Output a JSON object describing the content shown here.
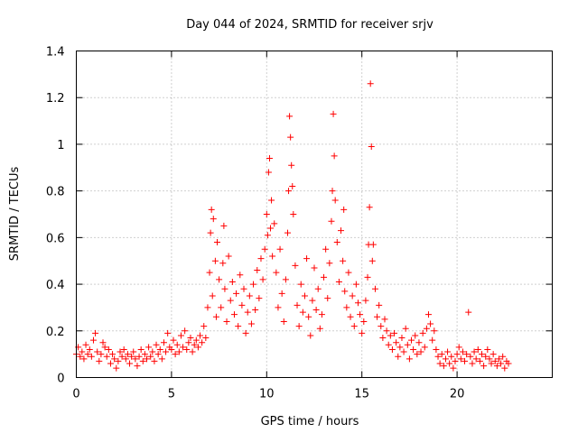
{
  "chart_data": {
    "type": "scatter",
    "title": "Day 044 of 2024, SRMTID for receiver srjv",
    "xlabel": "GPS time / hours",
    "ylabel": "SRMTID / TECUs",
    "xlim": [
      0,
      25
    ],
    "ylim": [
      0,
      1.4
    ],
    "xticks": [
      0,
      5,
      10,
      15,
      20
    ],
    "xtick_labels": [
      "0",
      "5",
      "10",
      "15",
      "20"
    ],
    "yticks": [
      0,
      0.2,
      0.4,
      0.6,
      0.8,
      1.0,
      1.2,
      1.4
    ],
    "ytick_labels": [
      "0",
      "0.2",
      "0.4",
      "0.6",
      "0.8",
      "1",
      "1.2",
      "1.4"
    ],
    "grid": true,
    "marker": "+",
    "color": "#ff0000",
    "series": [
      {
        "name": "SRMTID",
        "points": [
          [
            0.0,
            0.1
          ],
          [
            0.1,
            0.13
          ],
          [
            0.2,
            0.09
          ],
          [
            0.3,
            0.11
          ],
          [
            0.4,
            0.08
          ],
          [
            0.5,
            0.14
          ],
          [
            0.6,
            0.1
          ],
          [
            0.7,
            0.12
          ],
          [
            0.8,
            0.09
          ],
          [
            0.9,
            0.16
          ],
          [
            1.0,
            0.19
          ],
          [
            1.1,
            0.11
          ],
          [
            1.2,
            0.07
          ],
          [
            1.3,
            0.1
          ],
          [
            1.4,
            0.15
          ],
          [
            1.5,
            0.13
          ],
          [
            1.6,
            0.09
          ],
          [
            1.7,
            0.12
          ],
          [
            1.8,
            0.06
          ],
          [
            1.9,
            0.1
          ],
          [
            2.0,
            0.08
          ],
          [
            2.1,
            0.04
          ],
          [
            2.2,
            0.07
          ],
          [
            2.3,
            0.11
          ],
          [
            2.4,
            0.09
          ],
          [
            2.5,
            0.12
          ],
          [
            2.6,
            0.08
          ],
          [
            2.7,
            0.1
          ],
          [
            2.8,
            0.06
          ],
          [
            2.9,
            0.09
          ],
          [
            3.0,
            0.11
          ],
          [
            3.1,
            0.08
          ],
          [
            3.2,
            0.05
          ],
          [
            3.3,
            0.09
          ],
          [
            3.4,
            0.12
          ],
          [
            3.5,
            0.07
          ],
          [
            3.6,
            0.1
          ],
          [
            3.7,
            0.08
          ],
          [
            3.8,
            0.13
          ],
          [
            3.9,
            0.09
          ],
          [
            4.0,
            0.11
          ],
          [
            4.1,
            0.07
          ],
          [
            4.2,
            0.14
          ],
          [
            4.3,
            0.1
          ],
          [
            4.4,
            0.12
          ],
          [
            4.5,
            0.08
          ],
          [
            4.6,
            0.15
          ],
          [
            4.7,
            0.11
          ],
          [
            4.8,
            0.19
          ],
          [
            4.9,
            0.13
          ],
          [
            5.0,
            0.12
          ],
          [
            5.1,
            0.16
          ],
          [
            5.2,
            0.1
          ],
          [
            5.3,
            0.14
          ],
          [
            5.4,
            0.11
          ],
          [
            5.5,
            0.18
          ],
          [
            5.6,
            0.13
          ],
          [
            5.7,
            0.2
          ],
          [
            5.8,
            0.12
          ],
          [
            5.9,
            0.15
          ],
          [
            6.0,
            0.17
          ],
          [
            6.1,
            0.11
          ],
          [
            6.2,
            0.14
          ],
          [
            6.3,
            0.16
          ],
          [
            6.4,
            0.13
          ],
          [
            6.5,
            0.18
          ],
          [
            6.6,
            0.15
          ],
          [
            6.7,
            0.22
          ],
          [
            6.8,
            0.17
          ],
          [
            6.9,
            0.3
          ],
          [
            7.0,
            0.45
          ],
          [
            7.05,
            0.62
          ],
          [
            7.1,
            0.72
          ],
          [
            7.15,
            0.35
          ],
          [
            7.2,
            0.68
          ],
          [
            7.3,
            0.5
          ],
          [
            7.35,
            0.26
          ],
          [
            7.4,
            0.58
          ],
          [
            7.5,
            0.42
          ],
          [
            7.6,
            0.3
          ],
          [
            7.7,
            0.49
          ],
          [
            7.75,
            0.65
          ],
          [
            7.8,
            0.38
          ],
          [
            7.9,
            0.24
          ],
          [
            8.0,
            0.52
          ],
          [
            8.1,
            0.33
          ],
          [
            8.2,
            0.41
          ],
          [
            8.3,
            0.27
          ],
          [
            8.4,
            0.36
          ],
          [
            8.5,
            0.22
          ],
          [
            8.6,
            0.44
          ],
          [
            8.7,
            0.31
          ],
          [
            8.8,
            0.38
          ],
          [
            8.9,
            0.19
          ],
          [
            9.0,
            0.28
          ],
          [
            9.1,
            0.35
          ],
          [
            9.2,
            0.23
          ],
          [
            9.3,
            0.4
          ],
          [
            9.4,
            0.29
          ],
          [
            9.5,
            0.46
          ],
          [
            9.6,
            0.34
          ],
          [
            9.7,
            0.51
          ],
          [
            9.8,
            0.42
          ],
          [
            9.9,
            0.55
          ],
          [
            10.0,
            0.7
          ],
          [
            10.05,
            0.61
          ],
          [
            10.1,
            0.88
          ],
          [
            10.15,
            0.94
          ],
          [
            10.2,
            0.64
          ],
          [
            10.25,
            0.76
          ],
          [
            10.3,
            0.52
          ],
          [
            10.4,
            0.66
          ],
          [
            10.5,
            0.45
          ],
          [
            10.6,
            0.3
          ],
          [
            10.7,
            0.55
          ],
          [
            10.8,
            0.36
          ],
          [
            10.9,
            0.24
          ],
          [
            11.0,
            0.42
          ],
          [
            11.1,
            0.62
          ],
          [
            11.15,
            0.8
          ],
          [
            11.2,
            1.12
          ],
          [
            11.25,
            1.03
          ],
          [
            11.3,
            0.91
          ],
          [
            11.35,
            0.82
          ],
          [
            11.4,
            0.7
          ],
          [
            11.5,
            0.48
          ],
          [
            11.6,
            0.31
          ],
          [
            11.7,
            0.22
          ],
          [
            11.8,
            0.4
          ],
          [
            11.9,
            0.28
          ],
          [
            12.0,
            0.35
          ],
          [
            12.1,
            0.51
          ],
          [
            12.2,
            0.26
          ],
          [
            12.3,
            0.18
          ],
          [
            12.4,
            0.33
          ],
          [
            12.5,
            0.47
          ],
          [
            12.6,
            0.29
          ],
          [
            12.7,
            0.38
          ],
          [
            12.8,
            0.21
          ],
          [
            12.9,
            0.27
          ],
          [
            13.0,
            0.43
          ],
          [
            13.1,
            0.55
          ],
          [
            13.2,
            0.34
          ],
          [
            13.3,
            0.49
          ],
          [
            13.4,
            0.67
          ],
          [
            13.45,
            0.8
          ],
          [
            13.5,
            1.13
          ],
          [
            13.55,
            0.95
          ],
          [
            13.6,
            0.76
          ],
          [
            13.7,
            0.58
          ],
          [
            13.8,
            0.41
          ],
          [
            13.9,
            0.63
          ],
          [
            14.0,
            0.5
          ],
          [
            14.05,
            0.72
          ],
          [
            14.1,
            0.37
          ],
          [
            14.2,
            0.3
          ],
          [
            14.3,
            0.45
          ],
          [
            14.4,
            0.26
          ],
          [
            14.5,
            0.35
          ],
          [
            14.6,
            0.22
          ],
          [
            14.7,
            0.4
          ],
          [
            14.8,
            0.32
          ],
          [
            14.9,
            0.27
          ],
          [
            15.0,
            0.19
          ],
          [
            15.1,
            0.24
          ],
          [
            15.2,
            0.33
          ],
          [
            15.3,
            0.43
          ],
          [
            15.35,
            0.57
          ],
          [
            15.4,
            0.73
          ],
          [
            15.45,
            1.26
          ],
          [
            15.5,
            0.99
          ],
          [
            15.55,
            0.5
          ],
          [
            15.6,
            0.57
          ],
          [
            15.7,
            0.38
          ],
          [
            15.8,
            0.26
          ],
          [
            15.9,
            0.31
          ],
          [
            16.0,
            0.22
          ],
          [
            16.1,
            0.17
          ],
          [
            16.2,
            0.25
          ],
          [
            16.3,
            0.2
          ],
          [
            16.4,
            0.14
          ],
          [
            16.5,
            0.18
          ],
          [
            16.6,
            0.12
          ],
          [
            16.7,
            0.19
          ],
          [
            16.8,
            0.15
          ],
          [
            16.9,
            0.09
          ],
          [
            17.0,
            0.13
          ],
          [
            17.1,
            0.17
          ],
          [
            17.2,
            0.11
          ],
          [
            17.3,
            0.21
          ],
          [
            17.4,
            0.14
          ],
          [
            17.5,
            0.08
          ],
          [
            17.6,
            0.16
          ],
          [
            17.7,
            0.12
          ],
          [
            17.8,
            0.18
          ],
          [
            17.9,
            0.1
          ],
          [
            18.0,
            0.15
          ],
          [
            18.1,
            0.11
          ],
          [
            18.2,
            0.19
          ],
          [
            18.3,
            0.13
          ],
          [
            18.4,
            0.21
          ],
          [
            18.5,
            0.27
          ],
          [
            18.6,
            0.23
          ],
          [
            18.7,
            0.16
          ],
          [
            18.8,
            0.2
          ],
          [
            18.9,
            0.12
          ],
          [
            19.0,
            0.09
          ],
          [
            19.1,
            0.06
          ],
          [
            19.2,
            0.1
          ],
          [
            19.3,
            0.05
          ],
          [
            19.4,
            0.08
          ],
          [
            19.5,
            0.11
          ],
          [
            19.6,
            0.06
          ],
          [
            19.7,
            0.09
          ],
          [
            19.8,
            0.04
          ],
          [
            19.9,
            0.07
          ],
          [
            20.0,
            0.1
          ],
          [
            20.1,
            0.13
          ],
          [
            20.2,
            0.08
          ],
          [
            20.3,
            0.11
          ],
          [
            20.4,
            0.07
          ],
          [
            20.5,
            0.1
          ],
          [
            20.6,
            0.28
          ],
          [
            20.7,
            0.09
          ],
          [
            20.8,
            0.06
          ],
          [
            20.9,
            0.11
          ],
          [
            21.0,
            0.08
          ],
          [
            21.1,
            0.12
          ],
          [
            21.2,
            0.07
          ],
          [
            21.3,
            0.1
          ],
          [
            21.4,
            0.05
          ],
          [
            21.5,
            0.09
          ],
          [
            21.6,
            0.12
          ],
          [
            21.7,
            0.08
          ],
          [
            21.8,
            0.06
          ],
          [
            21.9,
            0.1
          ],
          [
            22.0,
            0.07
          ],
          [
            22.1,
            0.05
          ],
          [
            22.2,
            0.08
          ],
          [
            22.3,
            0.06
          ],
          [
            22.4,
            0.09
          ],
          [
            22.5,
            0.04
          ],
          [
            22.6,
            0.07
          ],
          [
            22.7,
            0.06
          ]
        ]
      }
    ]
  }
}
